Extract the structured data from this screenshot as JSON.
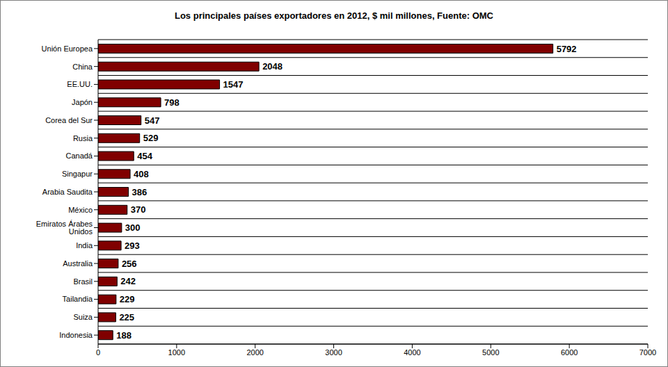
{
  "chart_data": {
    "type": "bar",
    "title": "Los principales países exportadores en 2012, $ mil millones, Fuente: OMC",
    "orientation": "horizontal",
    "categories": [
      "Unión Europea",
      "China",
      "EE.UU.",
      "Japón",
      "Corea del Sur",
      "Rusia",
      "Canadá",
      "Singapur",
      "Arabia Saudita",
      "México",
      "Emiratos Árabes Unidos",
      "India",
      "Australia",
      "Brasil",
      "Tailandia",
      "Suiza",
      "Indonesia"
    ],
    "values": [
      5792,
      2048,
      1547,
      798,
      547,
      529,
      454,
      408,
      386,
      370,
      300,
      293,
      256,
      242,
      229,
      225,
      188
    ],
    "color": "#800000",
    "xlim": [
      0,
      7000
    ],
    "xticks": [
      0,
      1000,
      2000,
      3000,
      4000,
      5000,
      6000,
      7000
    ],
    "grid": true,
    "data_labels": true
  }
}
